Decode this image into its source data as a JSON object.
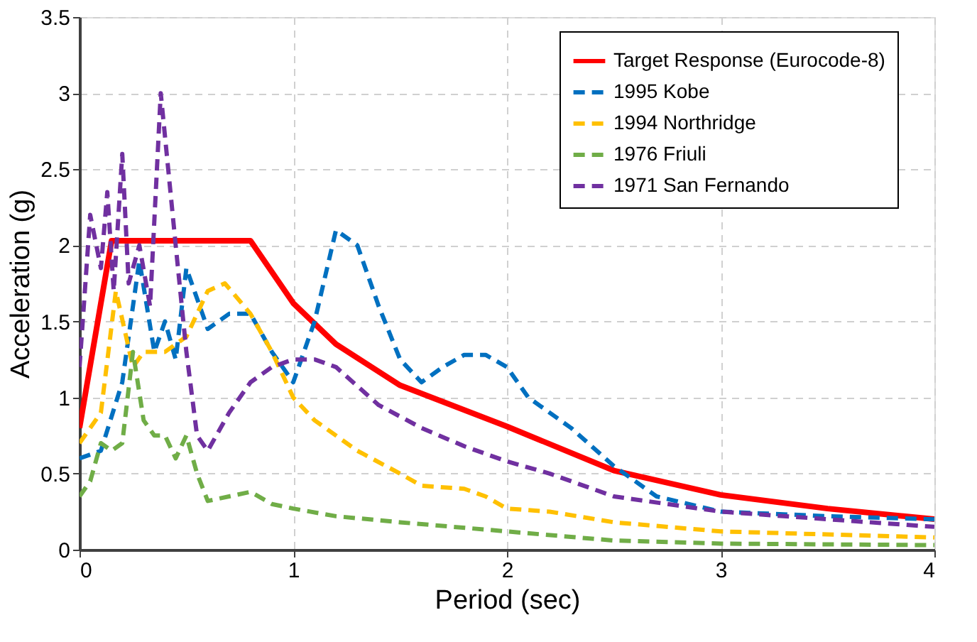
{
  "chart_data": {
    "type": "line",
    "xlabel": "Period (sec)",
    "ylabel": "Acceleration (g)",
    "xlim": [
      0,
      4
    ],
    "xticks": [
      0,
      1,
      2,
      3,
      4
    ],
    "ylim": [
      0,
      3.5
    ],
    "yticks": [
      0,
      0.5,
      1,
      1.5,
      2,
      2.5,
      3,
      3.5
    ],
    "grid": true,
    "legend": "top right",
    "marker": "none",
    "series": [
      {
        "name": "Target Response (Eurocode-8)",
        "color": "#ff0000",
        "line_style": "solid",
        "x": [
          0,
          0.15,
          0.8,
          1,
          1.2,
          1.5,
          2,
          2.5,
          3,
          3.5,
          4
        ],
        "values": [
          0.8,
          2.03,
          2.03,
          1.62,
          1.35,
          1.08,
          0.81,
          0.52,
          0.36,
          0.27,
          0.2
        ]
      },
      {
        "name": "1995 Kobe",
        "color": "#0070c0",
        "line_style": "dashed",
        "x": [
          0,
          0.1,
          0.2,
          0.28,
          0.35,
          0.4,
          0.45,
          0.5,
          0.6,
          0.7,
          0.8,
          0.9,
          1.0,
          1.1,
          1.2,
          1.3,
          1.4,
          1.5,
          1.6,
          1.7,
          1.8,
          1.9,
          2.0,
          2.1,
          2.3,
          2.5,
          2.7,
          3.0,
          3.5,
          4.0
        ],
        "values": [
          0.6,
          0.65,
          1.1,
          1.9,
          1.3,
          1.5,
          1.25,
          1.85,
          1.45,
          1.55,
          1.55,
          1.3,
          1.1,
          1.5,
          2.1,
          2.0,
          1.6,
          1.25,
          1.1,
          1.2,
          1.28,
          1.28,
          1.2,
          1.0,
          0.8,
          0.55,
          0.35,
          0.25,
          0.22,
          0.2
        ]
      },
      {
        "name": "1994 Northridge",
        "color": "#ffc000",
        "line_style": "dashed",
        "x": [
          0,
          0.1,
          0.17,
          0.25,
          0.3,
          0.4,
          0.5,
          0.6,
          0.68,
          0.8,
          0.9,
          1.0,
          1.1,
          1.3,
          1.5,
          1.6,
          1.8,
          1.9,
          2.0,
          2.2,
          2.5,
          3.0,
          3.5,
          4.0
        ],
        "values": [
          0.7,
          0.9,
          1.7,
          1.2,
          1.3,
          1.3,
          1.4,
          1.7,
          1.75,
          1.55,
          1.3,
          1.0,
          0.85,
          0.65,
          0.5,
          0.42,
          0.4,
          0.35,
          0.27,
          0.25,
          0.18,
          0.12,
          0.1,
          0.08
        ]
      },
      {
        "name": "1976 Friuli",
        "color": "#70ad47",
        "line_style": "dashed",
        "x": [
          0,
          0.05,
          0.1,
          0.15,
          0.2,
          0.25,
          0.3,
          0.35,
          0.4,
          0.45,
          0.5,
          0.55,
          0.6,
          0.7,
          0.8,
          0.9,
          1.0,
          1.2,
          1.5,
          2.0,
          2.5,
          3.0,
          4.0
        ],
        "values": [
          0.35,
          0.45,
          0.7,
          0.65,
          0.7,
          1.3,
          0.85,
          0.75,
          0.75,
          0.6,
          0.75,
          0.5,
          0.32,
          0.35,
          0.38,
          0.3,
          0.27,
          0.22,
          0.18,
          0.12,
          0.06,
          0.04,
          0.03
        ]
      },
      {
        "name": "1971 San Fernando",
        "color": "#7030a0",
        "line_style": "dashed",
        "x": [
          0,
          0.05,
          0.1,
          0.13,
          0.16,
          0.2,
          0.23,
          0.28,
          0.33,
          0.38,
          0.45,
          0.5,
          0.55,
          0.6,
          0.7,
          0.8,
          0.9,
          1.0,
          1.1,
          1.2,
          1.4,
          1.6,
          1.8,
          2.0,
          2.2,
          2.5,
          3.0,
          3.5,
          4.0
        ],
        "values": [
          1.2,
          2.2,
          1.85,
          2.35,
          1.7,
          2.6,
          1.75,
          2.0,
          1.6,
          3.0,
          2.0,
          1.3,
          0.75,
          0.65,
          0.9,
          1.1,
          1.2,
          1.25,
          1.25,
          1.2,
          0.95,
          0.8,
          0.68,
          0.58,
          0.5,
          0.35,
          0.25,
          0.2,
          0.15
        ]
      }
    ]
  }
}
